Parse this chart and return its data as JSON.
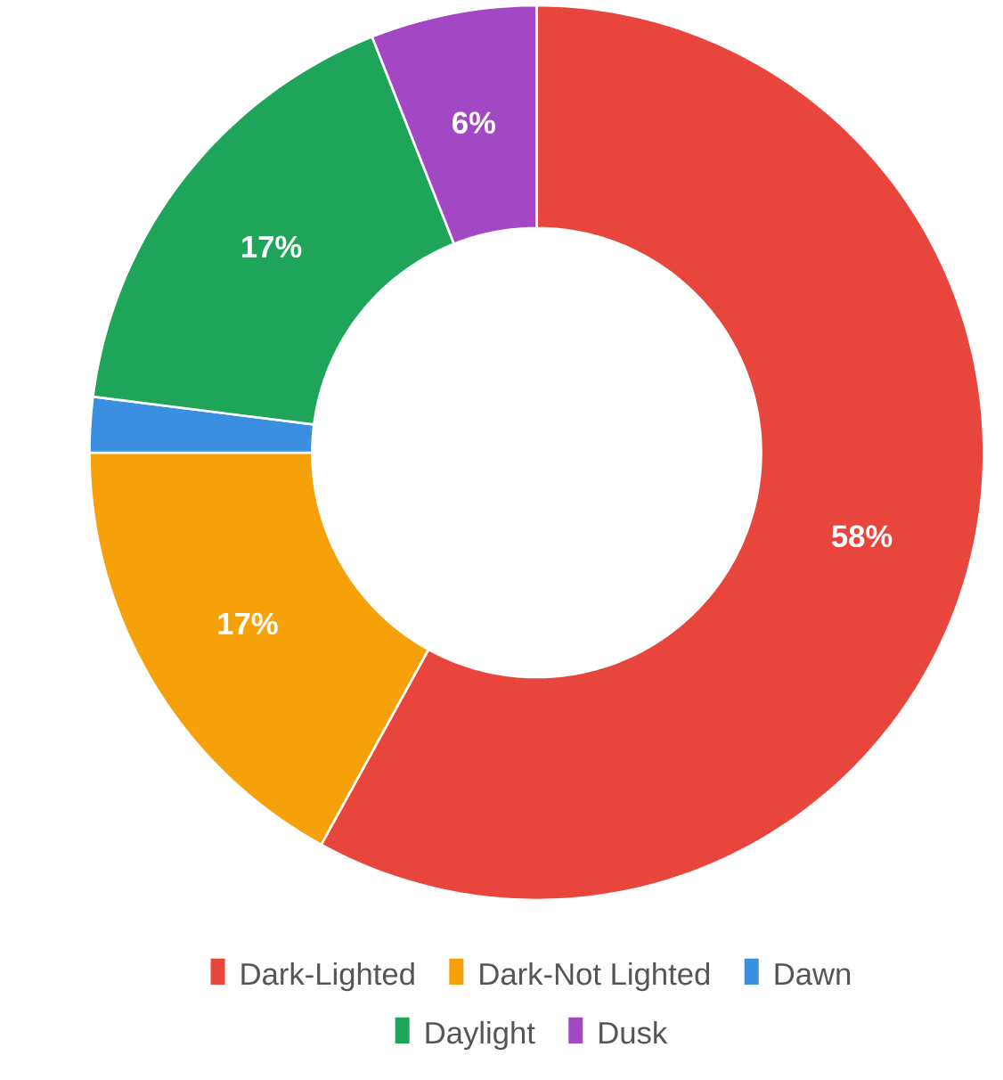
{
  "chart_data": {
    "type": "donut",
    "categories": [
      "Dark-Lighted",
      "Dark-Not Lighted",
      "Dawn",
      "Daylight",
      "Dusk"
    ],
    "values": [
      58,
      17,
      2,
      17,
      6
    ],
    "colors": [
      "#e8453c",
      "#f6a10a",
      "#3b8fe0",
      "#1ea55a",
      "#a348c5"
    ],
    "value_labels": [
      "58%",
      "17%",
      null,
      "17%",
      "6%"
    ],
    "legend": "bottom"
  }
}
